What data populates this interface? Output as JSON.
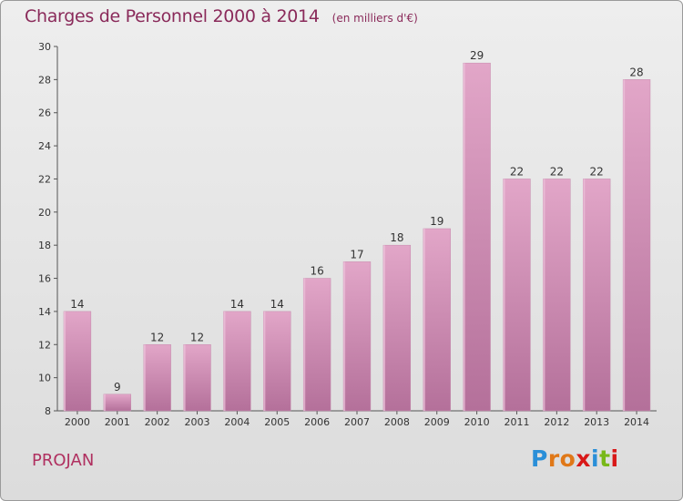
{
  "chart_data": {
    "type": "bar",
    "title": "Charges de Personnel 2000 à 2014",
    "subtitle": "(en milliers d'€)",
    "categories": [
      "2000",
      "2001",
      "2002",
      "2003",
      "2004",
      "2005",
      "2006",
      "2007",
      "2008",
      "2009",
      "2010",
      "2011",
      "2012",
      "2013",
      "2014"
    ],
    "values": [
      14,
      9,
      12,
      12,
      14,
      14,
      16,
      17,
      18,
      19,
      29,
      22,
      22,
      22,
      28
    ],
    "ylim": [
      8,
      30
    ],
    "yticks": [
      8,
      10,
      12,
      14,
      16,
      18,
      20,
      22,
      24,
      26,
      28,
      30
    ],
    "grid": false,
    "bar_color": "#d68fb5"
  },
  "commune": "PROJAN",
  "logo": {
    "text": "Proxiti",
    "colors": [
      "#2a8fd8",
      "#e07818",
      "#e07818",
      "#d81818",
      "#2a8fd8",
      "#78b818",
      "#d81818"
    ]
  }
}
